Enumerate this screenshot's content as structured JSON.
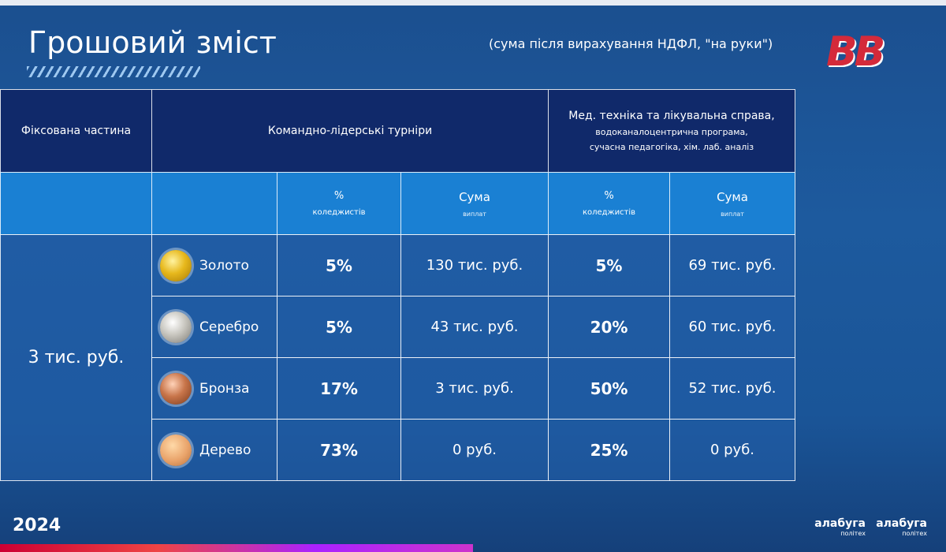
{
  "header": {
    "title": "Грошовий зміст",
    "subtitle": "(сума після вирахування НДФЛ, \"на руки\")",
    "logo": "BB"
  },
  "table": {
    "head": {
      "fixed": "Фіксована частина",
      "team": "Командно-лідерські турніри",
      "med": [
        "Мед. техніка та лікувальна справа,",
        "водоканалоцентрична програма,",
        "сучасна педагогіка, хім. лаб. аналіз"
      ]
    },
    "subhead": {
      "team_pct": [
        "%",
        "коледжистів"
      ],
      "team_sum": [
        "Сума",
        "виплат"
      ],
      "med_pct": [
        "%",
        "коледжистів"
      ],
      "med_sum": [
        "Сума",
        "виплат"
      ]
    },
    "fixed_value": "3 тис. руб.",
    "rows": [
      {
        "medal": "Золото",
        "team_pct": "5%",
        "team_sum": "130 тис. руб.",
        "med_pct": "5%",
        "med_sum": "69 тис. руб."
      },
      {
        "medal": "Серебро",
        "team_pct": "5%",
        "team_sum": "43 тис. руб.",
        "med_pct": "20%",
        "med_sum": "60 тис. руб."
      },
      {
        "medal": "Бронза",
        "team_pct": "17%",
        "team_sum": "3 тис. руб.",
        "med_pct": "50%",
        "med_sum": "52 тис. руб."
      },
      {
        "medal": "Дерево",
        "team_pct": "73%",
        "team_sum": "0 руб.",
        "med_pct": "25%",
        "med_sum": "0 руб."
      }
    ]
  },
  "footer": {
    "year": "2024",
    "brand": [
      {
        "name": "алабуга",
        "sub": "політех"
      },
      {
        "name": "алабуга",
        "sub": "політех"
      }
    ]
  }
}
